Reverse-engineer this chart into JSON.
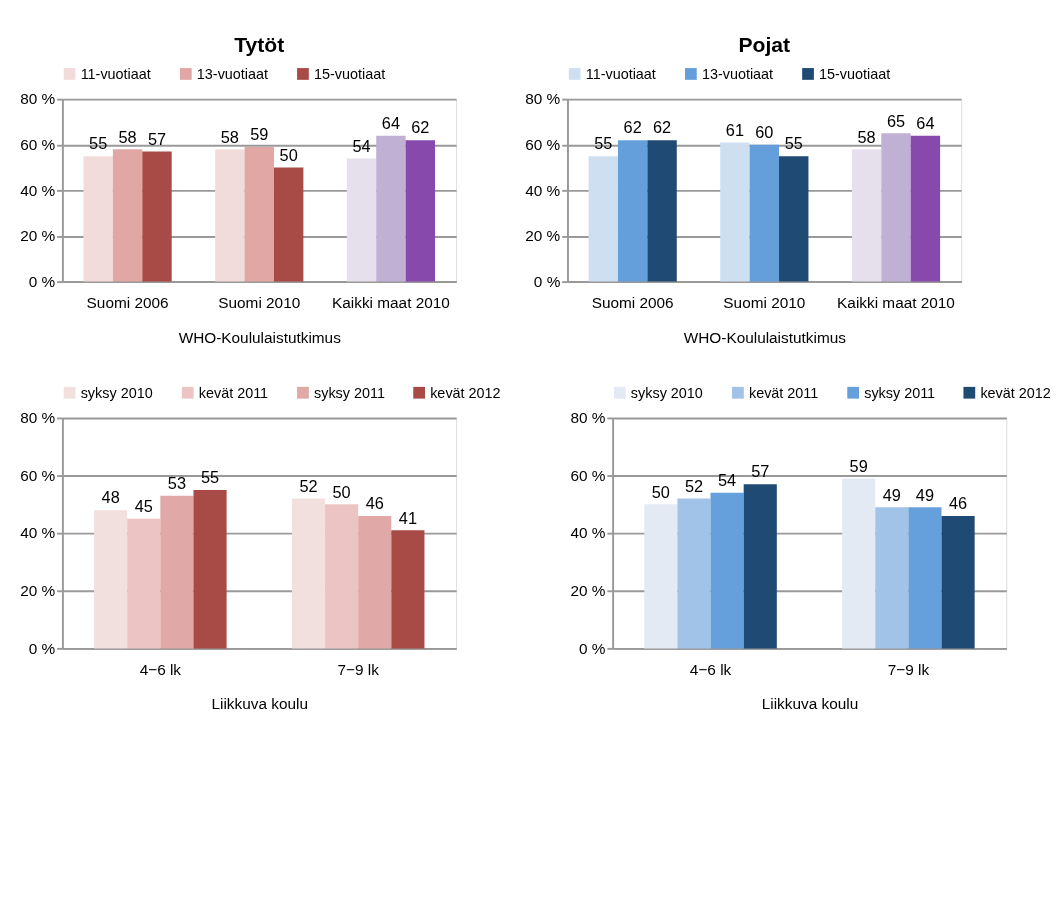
{
  "chart_data": [
    {
      "type": "bar",
      "title": "Tytöt",
      "xlabel": "WHO-Koululaistutkimus",
      "categories": [
        "Suomi 2006",
        "Suomi 2010",
        "Kaikki maat 2010"
      ],
      "series": [
        {
          "name": "11-vuotiaat",
          "color": "#f2dcdb",
          "colors": [
            "#f2dcdb",
            "#f2dcdb",
            "#e6e0ec"
          ],
          "values": [
            55,
            58,
            54
          ]
        },
        {
          "name": "13-vuotiaat",
          "color": "#e0a7a5",
          "colors": [
            "#e0a7a5",
            "#e0a7a5",
            "#c0b0d4"
          ],
          "values": [
            58,
            59,
            64
          ]
        },
        {
          "name": "15-vuotiaat",
          "color": "#a84a45",
          "colors": [
            "#a84a45",
            "#a84a45",
            "#8849ad"
          ],
          "values": [
            57,
            50,
            62
          ]
        }
      ],
      "ylim": [
        0,
        80
      ],
      "yticks": [
        {
          "value": 0,
          "label": "0 %"
        },
        {
          "value": 20,
          "label": "20 %"
        },
        {
          "value": 40,
          "label": "40 %"
        },
        {
          "value": 60,
          "label": "60 %"
        },
        {
          "value": 80,
          "label": "80 %"
        }
      ],
      "data_labels": true,
      "grid": "y",
      "legend": "top"
    },
    {
      "type": "bar",
      "title": "Pojat",
      "xlabel": "WHO-Koululaistutkimus",
      "categories": [
        "Suomi 2006",
        "Suomi 2010",
        "Kaikki maat 2010"
      ],
      "series": [
        {
          "name": "11-vuotiaat",
          "color": "#cfdff2",
          "colors": [
            "#cfdff2",
            "#cfdff2",
            "#e6e0ec"
          ],
          "values": [
            55,
            61,
            58
          ]
        },
        {
          "name": "13-vuotiaat",
          "color": "#659fdb",
          "colors": [
            "#659fdb",
            "#659fdb",
            "#c0b0d4"
          ],
          "values": [
            62,
            60,
            65
          ]
        },
        {
          "name": "15-vuotiaat",
          "color": "#1f4a73",
          "colors": [
            "#1f4a73",
            "#1f4a73",
            "#8849ad"
          ],
          "values": [
            62,
            55,
            64
          ]
        }
      ],
      "ylim": [
        0,
        80
      ],
      "yticks": [
        {
          "value": 0,
          "label": "0 %"
        },
        {
          "value": 20,
          "label": "20 %"
        },
        {
          "value": 40,
          "label": "40 %"
        },
        {
          "value": 60,
          "label": "60 %"
        },
        {
          "value": 80,
          "label": "80 %"
        }
      ],
      "data_labels": true,
      "grid": "y",
      "legend": "top"
    },
    {
      "type": "bar",
      "xlabel": "Liikkuva koulu",
      "categories": [
        "4−6 lk",
        "7−9 lk"
      ],
      "series": [
        {
          "name": "syksy 2010",
          "color": "#f2e0df",
          "values": [
            48,
            52
          ]
        },
        {
          "name": "kevät 2011",
          "color": "#ebc4c3",
          "values": [
            45,
            50
          ]
        },
        {
          "name": "syksy 2011",
          "color": "#e0a8a6",
          "values": [
            53,
            46
          ]
        },
        {
          "name": "kevät 2012",
          "color": "#a84a45",
          "values": [
            55,
            41
          ]
        }
      ],
      "ylim": [
        0,
        80
      ],
      "yticks": [
        {
          "value": 0,
          "label": "0 %"
        },
        {
          "value": 20,
          "label": "20 %"
        },
        {
          "value": 40,
          "label": "40 %"
        },
        {
          "value": 60,
          "label": "60 %"
        },
        {
          "value": 80,
          "label": "80 %"
        }
      ],
      "data_labels": true,
      "grid": "y",
      "legend": "top"
    },
    {
      "type": "bar",
      "xlabel": "Liikkuva koulu",
      "categories": [
        "4−6 lk",
        "7−9 lk"
      ],
      "series": [
        {
          "name": "syksy 2010",
          "color": "#e3eaf4",
          "values": [
            50,
            59
          ]
        },
        {
          "name": "kevät 2011",
          "color": "#a1c3e8",
          "values": [
            52,
            49
          ]
        },
        {
          "name": "syksy 2011",
          "color": "#66a0dc",
          "values": [
            54,
            49
          ]
        },
        {
          "name": "kevät 2012",
          "color": "#1f4a73",
          "values": [
            57,
            46
          ]
        }
      ],
      "ylim": [
        0,
        80
      ],
      "yticks": [
        {
          "value": 0,
          "label": "0 %"
        },
        {
          "value": 20,
          "label": "20 %"
        },
        {
          "value": 40,
          "label": "40 %"
        },
        {
          "value": 60,
          "label": "60 %"
        },
        {
          "value": 80,
          "label": "80 %"
        }
      ],
      "data_labels": true,
      "grid": "y",
      "legend": "top"
    }
  ]
}
